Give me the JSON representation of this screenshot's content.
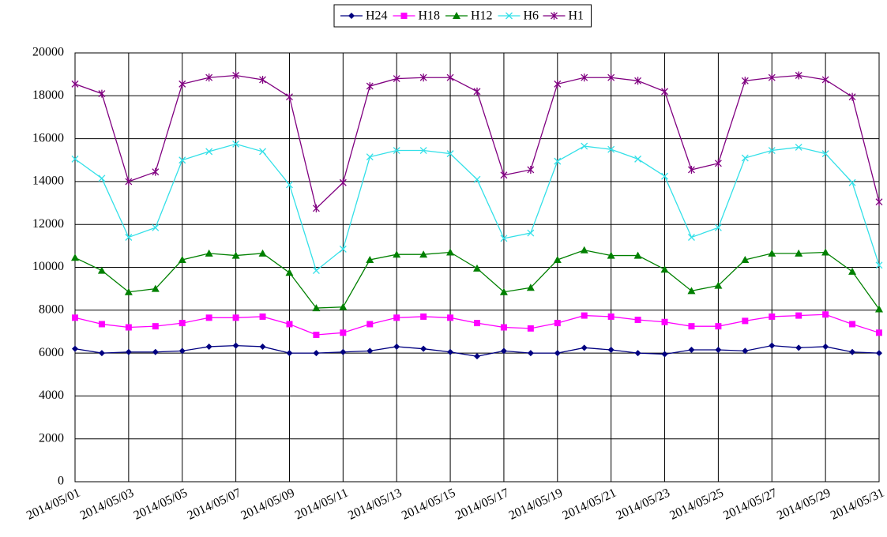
{
  "chart_data": {
    "type": "line",
    "categories": [
      "2014/05/01",
      null,
      "2014/05/03",
      null,
      "2014/05/05",
      null,
      "2014/05/07",
      null,
      "2014/05/09",
      null,
      "2014/05/11",
      null,
      "2014/05/13",
      null,
      "2014/05/15",
      null,
      "2014/05/17",
      null,
      "2014/05/19",
      null,
      "2014/05/21",
      null,
      "2014/05/23",
      null,
      "2014/05/25",
      null,
      "2014/05/27",
      null,
      "2014/05/29",
      null,
      "2014/05/31"
    ],
    "series": [
      {
        "name": "H24",
        "color": "#000080",
        "marker": "diamond",
        "values": [
          6200,
          6000,
          6050,
          6050,
          6100,
          6300,
          6350,
          6300,
          6000,
          6000,
          6050,
          6100,
          6300,
          6200,
          6050,
          5850,
          6100,
          6000,
          6000,
          6250,
          6150,
          6000,
          5950,
          6150,
          6150,
          6100,
          6350,
          6250,
          6300,
          6050,
          6000
        ]
      },
      {
        "name": "H18",
        "color": "#ff00ff",
        "marker": "square",
        "values": [
          7650,
          7350,
          7200,
          7250,
          7400,
          7650,
          7650,
          7700,
          7350,
          6850,
          6950,
          7350,
          7650,
          7700,
          7650,
          7400,
          7200,
          7150,
          7400,
          7750,
          7700,
          7550,
          7450,
          7250,
          7250,
          7500,
          7700,
          7750,
          7800,
          7350,
          6950
        ]
      },
      {
        "name": "H12",
        "color": "#008000",
        "marker": "triangle",
        "values": [
          10450,
          9850,
          8850,
          9000,
          10350,
          10650,
          10550,
          10650,
          9750,
          8100,
          8150,
          10350,
          10600,
          10600,
          10700,
          9950,
          8850,
          9050,
          10350,
          10800,
          10550,
          10550,
          9900,
          8900,
          9150,
          10350,
          10650,
          10650,
          10700,
          9800,
          8050
        ]
      },
      {
        "name": "H6",
        "color": "#33e0e8",
        "marker": "x",
        "values": [
          15050,
          14150,
          11400,
          11850,
          15000,
          15400,
          15750,
          15400,
          13850,
          9850,
          10850,
          15150,
          15450,
          15450,
          15300,
          14100,
          11350,
          11600,
          14950,
          15650,
          15500,
          15050,
          14250,
          11400,
          11850,
          15100,
          15450,
          15600,
          15300,
          13950,
          10100
        ]
      },
      {
        "name": "H1",
        "color": "#800080",
        "marker": "star",
        "values": [
          18550,
          18100,
          14000,
          14450,
          18550,
          18850,
          18950,
          18750,
          17950,
          12750,
          13950,
          18450,
          18800,
          18850,
          18850,
          18200,
          14300,
          14550,
          18550,
          18850,
          18850,
          18700,
          18200,
          14550,
          14850,
          18700,
          18850,
          18950,
          18750,
          17950,
          13050
        ]
      }
    ],
    "ylim": [
      0,
      20000
    ],
    "yticks": [
      0,
      2000,
      4000,
      6000,
      8000,
      10000,
      12000,
      14000,
      16000,
      18000,
      20000
    ],
    "grid": true,
    "legend": "top"
  }
}
